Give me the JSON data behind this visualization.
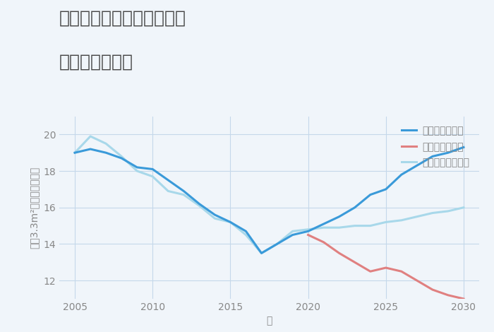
{
  "title_line1": "兵庫県豊岡市但東町南尾の",
  "title_line2": "土地の価格推移",
  "xlabel": "年",
  "ylabel": "坪（3.3m²）単価（万円）",
  "background_color": "#f0f5fa",
  "plot_background": "#f0f5fa",
  "good_scenario": {
    "label": "グッドシナリオ",
    "color": "#3a9ad9",
    "x": [
      2005,
      2006,
      2007,
      2008,
      2009,
      2010,
      2011,
      2012,
      2013,
      2014,
      2015,
      2016,
      2017,
      2018,
      2019,
      2020,
      2021,
      2022,
      2023,
      2024,
      2025,
      2026,
      2027,
      2028,
      2029,
      2030
    ],
    "y": [
      19.0,
      19.2,
      19.0,
      18.7,
      18.2,
      18.1,
      17.5,
      16.9,
      16.2,
      15.6,
      15.2,
      14.7,
      13.5,
      14.0,
      14.5,
      14.7,
      15.1,
      15.5,
      16.0,
      16.7,
      17.0,
      17.8,
      18.3,
      18.8,
      19.0,
      19.3
    ]
  },
  "bad_scenario": {
    "label": "バッドシナリオ",
    "color": "#e08080",
    "x": [
      2020,
      2021,
      2022,
      2023,
      2024,
      2025,
      2026,
      2027,
      2028,
      2029,
      2030
    ],
    "y": [
      14.5,
      14.1,
      13.5,
      13.0,
      12.5,
      12.7,
      12.5,
      12.0,
      11.5,
      11.2,
      11.0
    ]
  },
  "normal_scenario": {
    "label": "ノーマルシナリオ",
    "color": "#a8d8ea",
    "x": [
      2005,
      2006,
      2007,
      2008,
      2009,
      2010,
      2011,
      2012,
      2013,
      2014,
      2015,
      2016,
      2017,
      2018,
      2019,
      2020,
      2021,
      2022,
      2023,
      2024,
      2025,
      2026,
      2027,
      2028,
      2029,
      2030
    ],
    "y": [
      19.0,
      19.9,
      19.5,
      18.8,
      18.0,
      17.7,
      16.9,
      16.7,
      16.1,
      15.4,
      15.2,
      14.5,
      13.5,
      14.0,
      14.7,
      14.8,
      14.9,
      14.9,
      15.0,
      15.0,
      15.2,
      15.3,
      15.5,
      15.7,
      15.8,
      16.0
    ]
  },
  "xlim": [
    2004,
    2031
  ],
  "ylim": [
    11,
    21
  ],
  "xticks": [
    2005,
    2010,
    2015,
    2020,
    2025,
    2030
  ],
  "yticks": [
    12,
    14,
    16,
    18,
    20
  ],
  "grid_color": "#c5d8ea",
  "tick_color": "#888888",
  "title_color": "#444444",
  "legend_fontsize": 10,
  "title_fontsize": 18,
  "axis_fontsize": 10,
  "linewidth": 2.2
}
